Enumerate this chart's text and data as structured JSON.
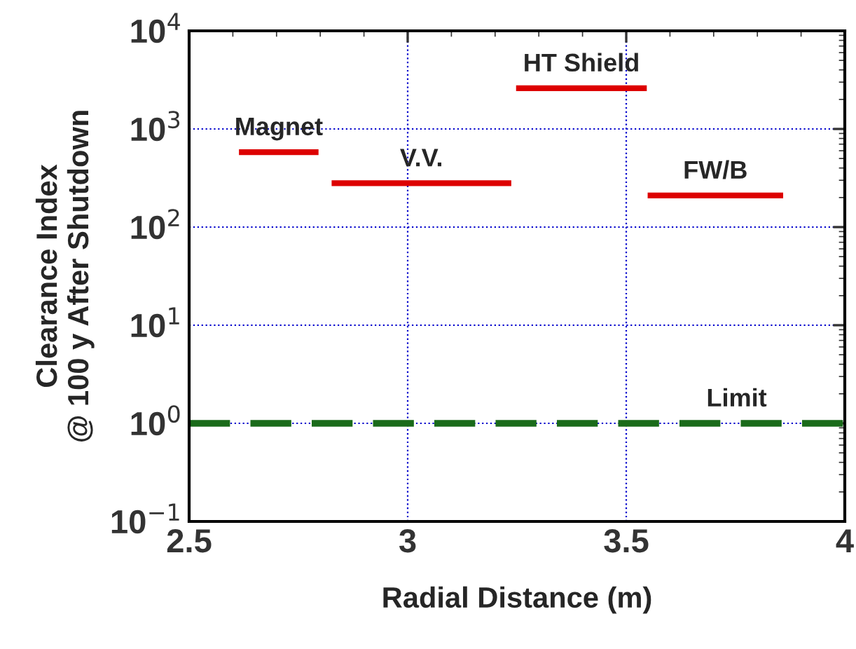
{
  "chart_data": {
    "type": "line",
    "xlabel": "Radial Distance (m)",
    "ylabel": "Clearance Index\n@ 100 y After Shutdown",
    "series": [
      {
        "name": "Magnet",
        "color": "#dd0000",
        "x": [
          2.614,
          2.796
        ],
        "values": [
          580,
          580
        ]
      },
      {
        "name": "V.V.",
        "color": "#dd0000",
        "x": [
          2.826,
          3.237
        ],
        "values": [
          280,
          280
        ]
      },
      {
        "name": "HT Shield",
        "color": "#dd0000",
        "x": [
          3.248,
          3.547
        ],
        "values": [
          2600,
          2600
        ]
      },
      {
        "name": "FW/B",
        "color": "#dd0000",
        "x": [
          3.549,
          3.859
        ],
        "values": [
          210,
          210
        ]
      }
    ],
    "ref_lines": [
      {
        "axis": "y",
        "value": 1,
        "label": "Limit",
        "color": "#1a6b1a",
        "line_style": "dashed"
      }
    ],
    "log": "y",
    "xlim": [
      2.5,
      4
    ],
    "xticks": [
      {
        "value": 2.5,
        "label": "2.5"
      },
      {
        "value": 3,
        "label": "3"
      },
      {
        "value": 3.5,
        "label": "3.5"
      },
      {
        "value": 4,
        "label": "4"
      }
    ],
    "ylim": [
      0.1,
      10000
    ],
    "yticks": [
      {
        "value": 0.1,
        "label": "10$^{−1}$"
      },
      {
        "value": 1,
        "label": "10$^{0}$"
      },
      {
        "value": 10,
        "label": "10$^{1}$"
      },
      {
        "value": 100,
        "label": "10$^{2}$"
      },
      {
        "value": 1000,
        "label": "10$^{3}$"
      },
      {
        "value": 10000,
        "label": "10$^{4}$"
      }
    ],
    "grid": true,
    "legend": false,
    "marker": "none",
    "line_style": "solid"
  }
}
